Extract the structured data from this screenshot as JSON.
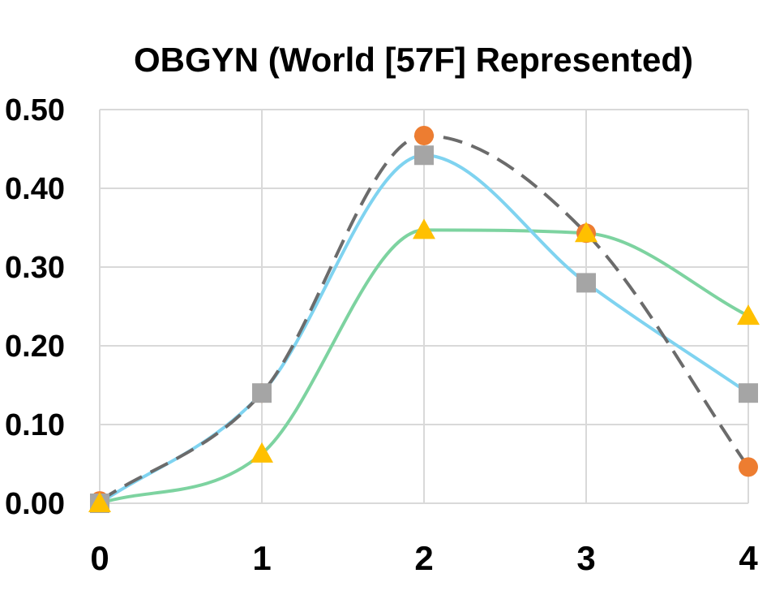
{
  "chart_data": {
    "type": "line",
    "title": "OBGYN (World [57F] Represented)",
    "xlabel": "",
    "ylabel": "",
    "x": [
      0,
      1,
      2,
      3,
      4
    ],
    "xlim": [
      0,
      4
    ],
    "ylim": [
      0,
      0.5
    ],
    "x_ticks": [
      "0",
      "1",
      "2",
      "3",
      "4"
    ],
    "y_ticks": [
      "0.00",
      "0.10",
      "0.20",
      "0.30",
      "0.40",
      "0.50"
    ],
    "grid": true,
    "legend": "none",
    "series": [
      {
        "values": [
          0.003,
          0.14,
          0.467,
          0.343,
          0.046
        ],
        "line_color": "#6b6b6b",
        "line_style": "dashed",
        "marker": "circle",
        "marker_color": "#ED7D31"
      },
      {
        "values": [
          0.0,
          0.14,
          0.442,
          0.28,
          0.14
        ],
        "line_color": "#7fd3f0",
        "line_style": "solid",
        "marker": "square",
        "marker_color": "#A5A5A5"
      },
      {
        "values": [
          0.0,
          0.063,
          0.347,
          0.343,
          0.238
        ],
        "line_color": "#7dd3a0",
        "line_style": "solid",
        "marker": "triangle",
        "marker_color": "#FFC000"
      }
    ]
  }
}
